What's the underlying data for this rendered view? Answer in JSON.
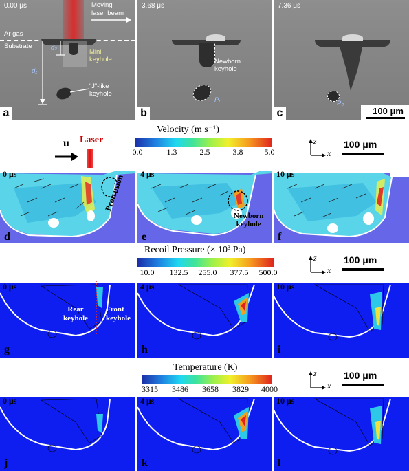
{
  "xray": {
    "panels": [
      {
        "time": "0.00 μs",
        "letter": "a"
      },
      {
        "time": "3.68 μs",
        "letter": "b"
      },
      {
        "time": "7.36 μs",
        "letter": "c"
      }
    ],
    "labels": {
      "laser": "Moving\nlaser beam",
      "ar": "Ar gas",
      "substrate": "Substrate",
      "d2": "d₂",
      "d1": "d₁",
      "mini": "Mini\nkeyhole",
      "jlike": "“J”-like\nkeyhole",
      "newborn": "Newborn\nkeyhole",
      "p0": "P₀",
      "p0c": "P₀"
    },
    "scale": "100 μm"
  },
  "velocity": {
    "title": "Velocity (m s⁻¹)",
    "ticks": [
      "0.0",
      "1.3",
      "2.5",
      "3.8",
      "5.0"
    ],
    "laser": "Laser",
    "u": "u",
    "protrusion": "Protrusion",
    "newborn": "Newborn\nkeyhole",
    "panels": [
      {
        "time": "0 μs",
        "letter": "d"
      },
      {
        "time": "4 μs",
        "letter": "e"
      },
      {
        "time": "10 μs",
        "letter": "f"
      }
    ]
  },
  "pressure": {
    "title": "Recoil Pressure (× 10³ Pa)",
    "ticks": [
      "10.0",
      "132.5",
      "255.0",
      "377.5",
      "500.0"
    ],
    "rear": "Rear\nkeyhole",
    "front": "Front\nkeyhole",
    "panels": [
      {
        "time": "0 μs",
        "letter": "g"
      },
      {
        "time": "4 μs",
        "letter": "h"
      },
      {
        "time": "10 μs",
        "letter": "i"
      }
    ]
  },
  "temperature": {
    "title": "Temperature (K)",
    "ticks": [
      "3315",
      "3486",
      "3658",
      "3829",
      "4000"
    ],
    "panels": [
      {
        "time": "0 μs",
        "letter": "j"
      },
      {
        "time": "4 μs",
        "letter": "k"
      },
      {
        "time": "10 μs",
        "letter": "l"
      }
    ]
  },
  "axes": {
    "z": "z",
    "x": "x"
  },
  "scale": "100 μm"
}
